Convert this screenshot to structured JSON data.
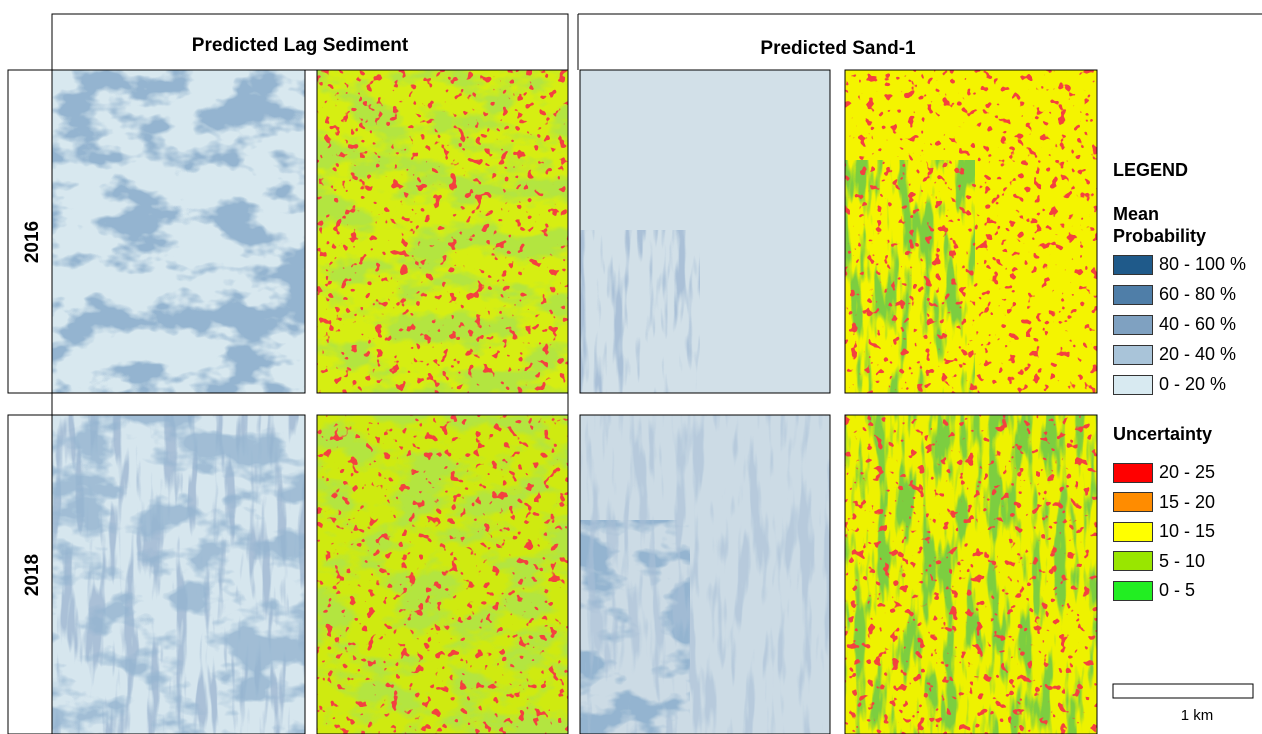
{
  "headers": [
    "Predicted Lag Sediment",
    "Predicted Sand-1"
  ],
  "rows": [
    "2016",
    "2018"
  ],
  "legend": {
    "title": "LEGEND",
    "sections": [
      {
        "title": "Mean Probability",
        "items": [
          {
            "label": "80 - 100 %",
            "color": "#1f5a8a"
          },
          {
            "label": "60 - 80 %",
            "color": "#4f7ea8"
          },
          {
            "label": "40 - 60 %",
            "color": "#7fa1c1"
          },
          {
            "label": "20 - 40 %",
            "color": "#a9c4d9"
          },
          {
            "label": "0 - 20 %",
            "color": "#d8eaf1"
          }
        ]
      },
      {
        "title": "Uncertainty",
        "items": [
          {
            "label": "20 - 25",
            "color": "#ff0000"
          },
          {
            "label": "15 - 20",
            "color": "#ff8c00"
          },
          {
            "label": "10 - 15",
            "color": "#ffff00"
          },
          {
            "label": "5 - 10",
            "color": "#99e600"
          },
          {
            "label": "0 - 5",
            "color": "#22ee22"
          }
        ]
      }
    ]
  },
  "scale_bar": "1 km"
}
